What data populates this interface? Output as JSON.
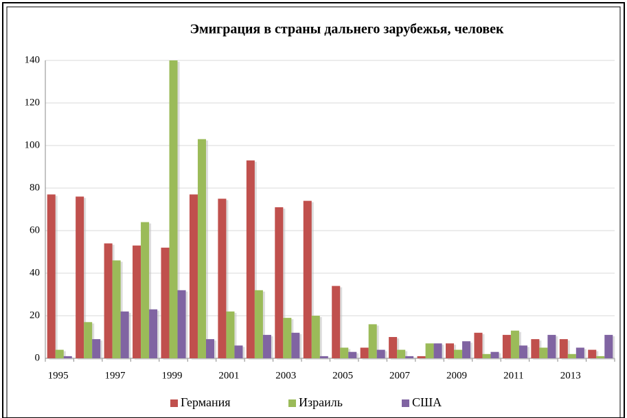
{
  "chart_data": {
    "type": "bar",
    "title": "Эмиграция в  страны дальнего зарубежья, человек",
    "categories": [
      "1995",
      null,
      "1997",
      null,
      "1999",
      null,
      "2001",
      null,
      "2003",
      null,
      "2005",
      null,
      "2007",
      null,
      "2009",
      null,
      "2011",
      null,
      "2013",
      null
    ],
    "series": [
      {
        "name": "Германия",
        "color": "#c0504d",
        "values": [
          77,
          76,
          54,
          53,
          52,
          77,
          75,
          93,
          71,
          74,
          34,
          5,
          10,
          1,
          7,
          12,
          11,
          9,
          9,
          4
        ]
      },
      {
        "name": "Израиль",
        "color": "#9bbb59",
        "values": [
          4,
          17,
          46,
          64,
          140,
          103,
          22,
          32,
          19,
          20,
          5,
          16,
          4,
          7,
          4,
          2,
          13,
          5,
          2,
          1
        ]
      },
      {
        "name": "США",
        "color": "#8064a2",
        "values": [
          1,
          9,
          22,
          23,
          32,
          9,
          6,
          11,
          12,
          1,
          3,
          4,
          1,
          7,
          8,
          3,
          6,
          11,
          5,
          11
        ]
      }
    ],
    "ylim": [
      0,
      140
    ],
    "yticks": [
      0,
      20,
      40,
      60,
      80,
      100,
      120,
      140
    ],
    "grid": true,
    "legend": "bottom"
  }
}
